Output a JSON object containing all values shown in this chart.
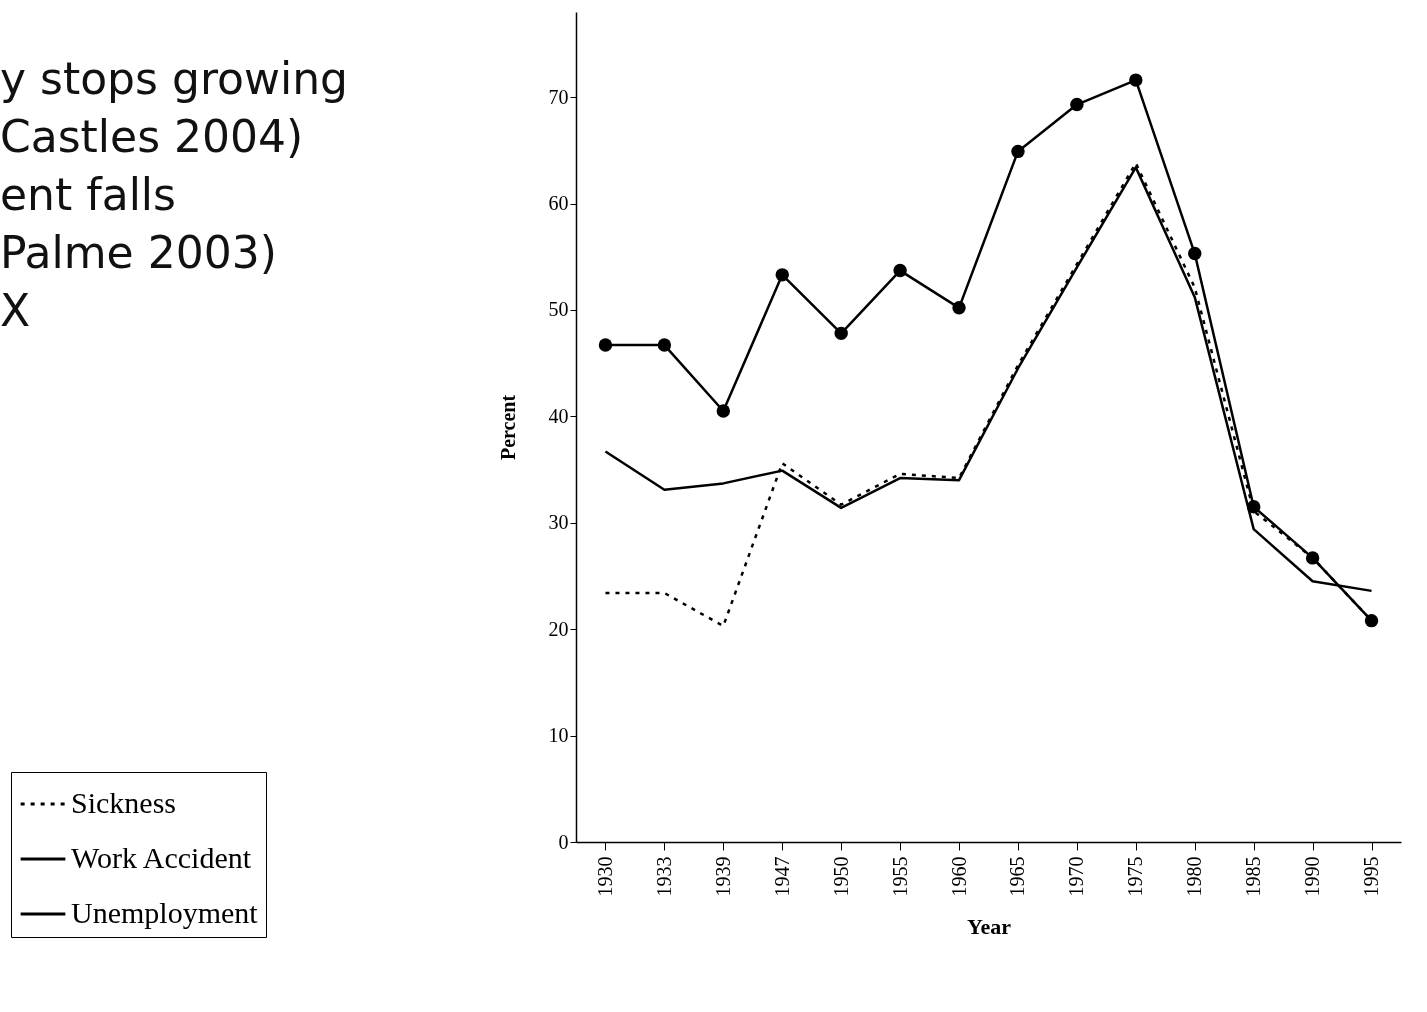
{
  "chart_data": {
    "type": "line",
    "categories": [
      "1930",
      "1933",
      "1939",
      "1947",
      "1950",
      "1955",
      "1960",
      "1965",
      "1970",
      "1975",
      "1980",
      "1985",
      "1990",
      "1995"
    ],
    "series": [
      {
        "name": "Sickness",
        "color": "#000000",
        "line_style": "dotted",
        "marker": "none",
        "values": [
          23.4,
          23.4,
          20.3,
          35.6,
          31.7,
          34.6,
          34.2,
          44.8,
          54.3,
          63.8,
          52.1,
          31.1,
          26.7,
          20.8
        ]
      },
      {
        "name": "Work Accident",
        "color": "#000000",
        "line_style": "solid",
        "marker": "circle",
        "values": [
          46.7,
          46.7,
          40.5,
          53.3,
          47.8,
          53.7,
          50.2,
          64.9,
          69.3,
          71.6,
          55.3,
          31.5,
          26.7,
          20.8
        ]
      },
      {
        "name": "Unemployment",
        "color": "#000000",
        "line_style": "solid",
        "marker": "none",
        "values": [
          36.7,
          33.1,
          33.7,
          34.9,
          31.4,
          34.2,
          34.0,
          44.5,
          54.0,
          63.4,
          51.2,
          29.4,
          24.5,
          23.6
        ]
      }
    ],
    "xlabel": "Year",
    "ylabel": "Percent",
    "ylim": [
      0,
      78
    ],
    "yticks": [
      0,
      10,
      20,
      30,
      40,
      50,
      60,
      70
    ],
    "grid": false,
    "legend": "bottom left",
    "annotations": [
      "y stops growing",
      "Castles 2004)",
      "ent falls",
      "Palme 2003)",
      "X"
    ]
  }
}
